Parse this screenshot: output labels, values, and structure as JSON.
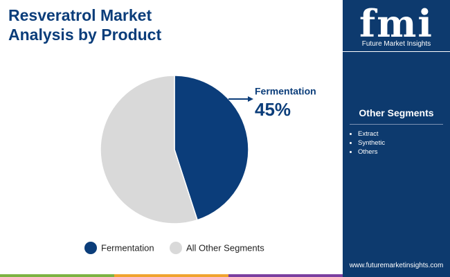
{
  "chart_data": {
    "type": "pie",
    "title": "Resveratrol Market Analysis by Product",
    "categories": [
      "Fermentation",
      "All Other Segments"
    ],
    "values": [
      45,
      55
    ],
    "value_labels": [
      "45%",
      null
    ],
    "colors": [
      "#0b3d7a",
      "#d9d9d9"
    ]
  },
  "sidebar": {
    "logo": "fmi",
    "brand": "Future Market Insights",
    "other_segments_title": "Other Segments",
    "other_segments": [
      "Extract",
      "Synthetic",
      "Others"
    ],
    "website": "www.futuremarketinsights.com"
  }
}
